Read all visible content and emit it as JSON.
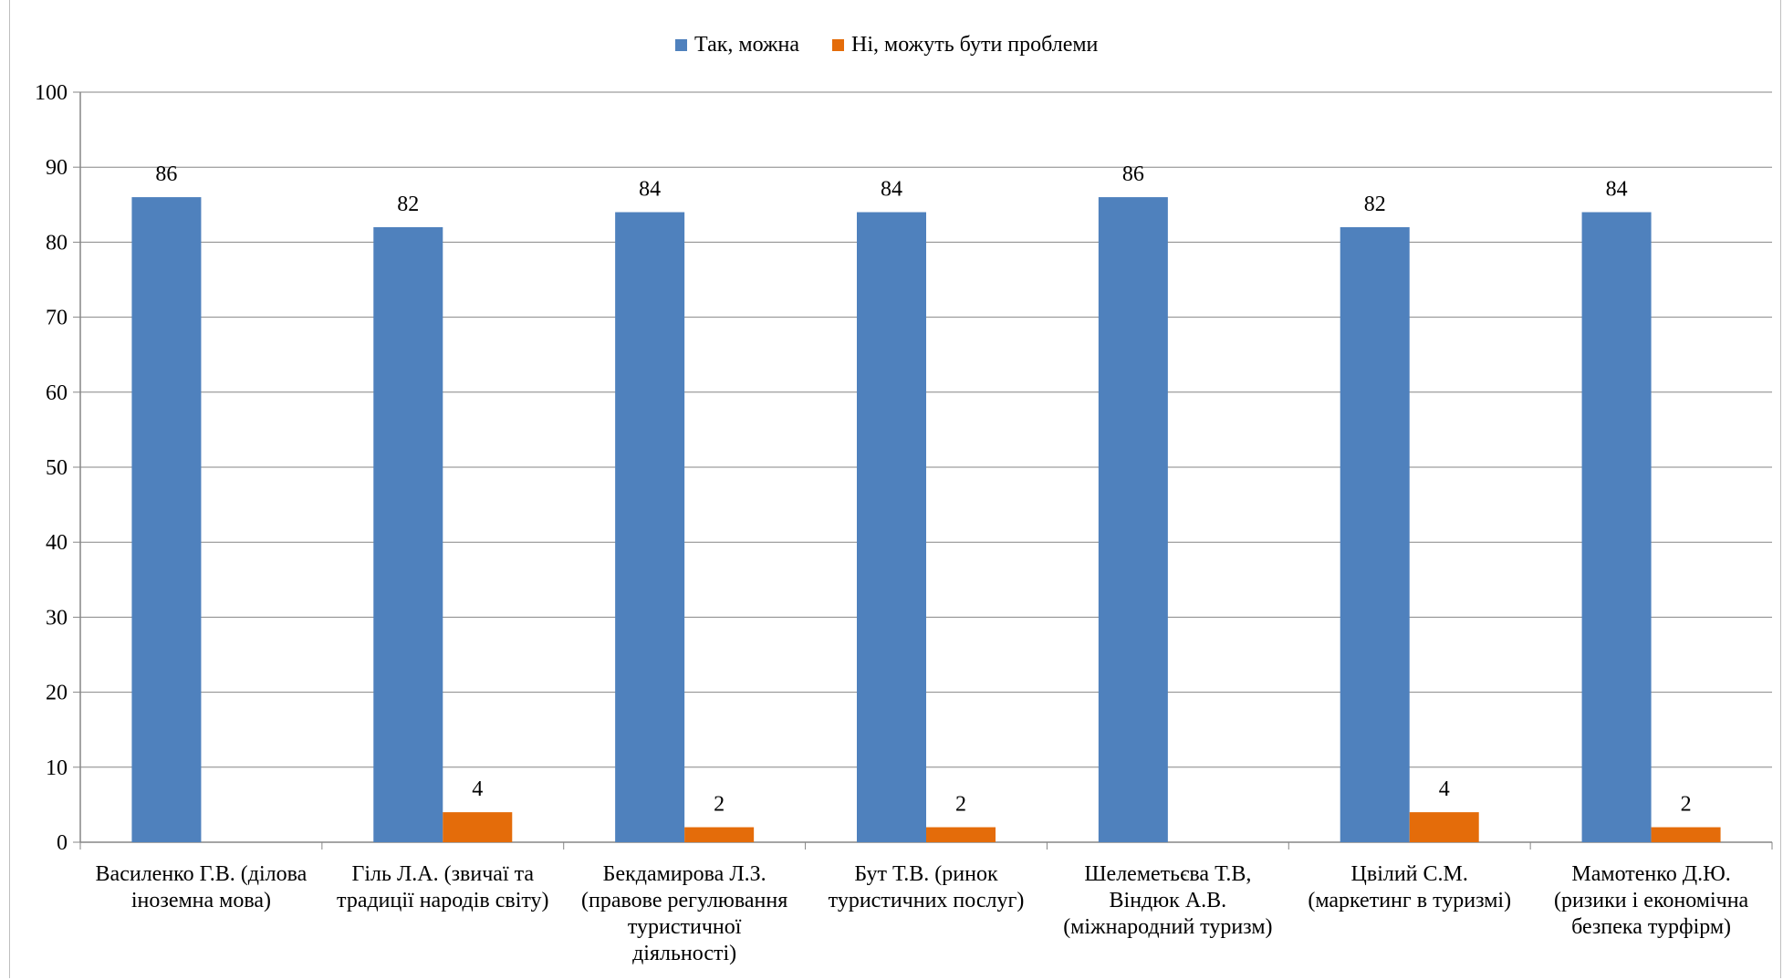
{
  "chart_data": {
    "type": "bar",
    "categories": [
      [
        "Василенко Г.В. (ділова",
        "іноземна мова)"
      ],
      [
        "Гіль Л.А. (звичаї та",
        "традиції народів світу)"
      ],
      [
        "Бекдамирова Л.З.",
        "(правове регулювання",
        "туристичної",
        "діяльності)"
      ],
      [
        "Бут Т.В. (ринок",
        "туристичних послуг)"
      ],
      [
        "Шелеметьєва Т.В,",
        "Віндюк А.В.",
        "(міжнародний туризм)"
      ],
      [
        "Цвілий С.М.",
        "(маркетинг в туризмі)"
      ],
      [
        "Мамотенко Д.Ю.",
        "(ризики і економічна",
        "безпека турфірм)"
      ]
    ],
    "series": [
      {
        "name": "Так, можна",
        "color": "#4f81bd",
        "values": [
          86,
          82,
          84,
          84,
          86,
          82,
          84
        ]
      },
      {
        "name": "Ні, можуть бути проблеми",
        "color": "#e46c0a",
        "values": [
          null,
          4,
          2,
          2,
          null,
          4,
          2
        ]
      }
    ],
    "ylim": [
      0,
      100
    ],
    "yticks": [
      0,
      10,
      20,
      30,
      40,
      50,
      60,
      70,
      80,
      90,
      100
    ],
    "grid": true,
    "legend_position": "top"
  }
}
